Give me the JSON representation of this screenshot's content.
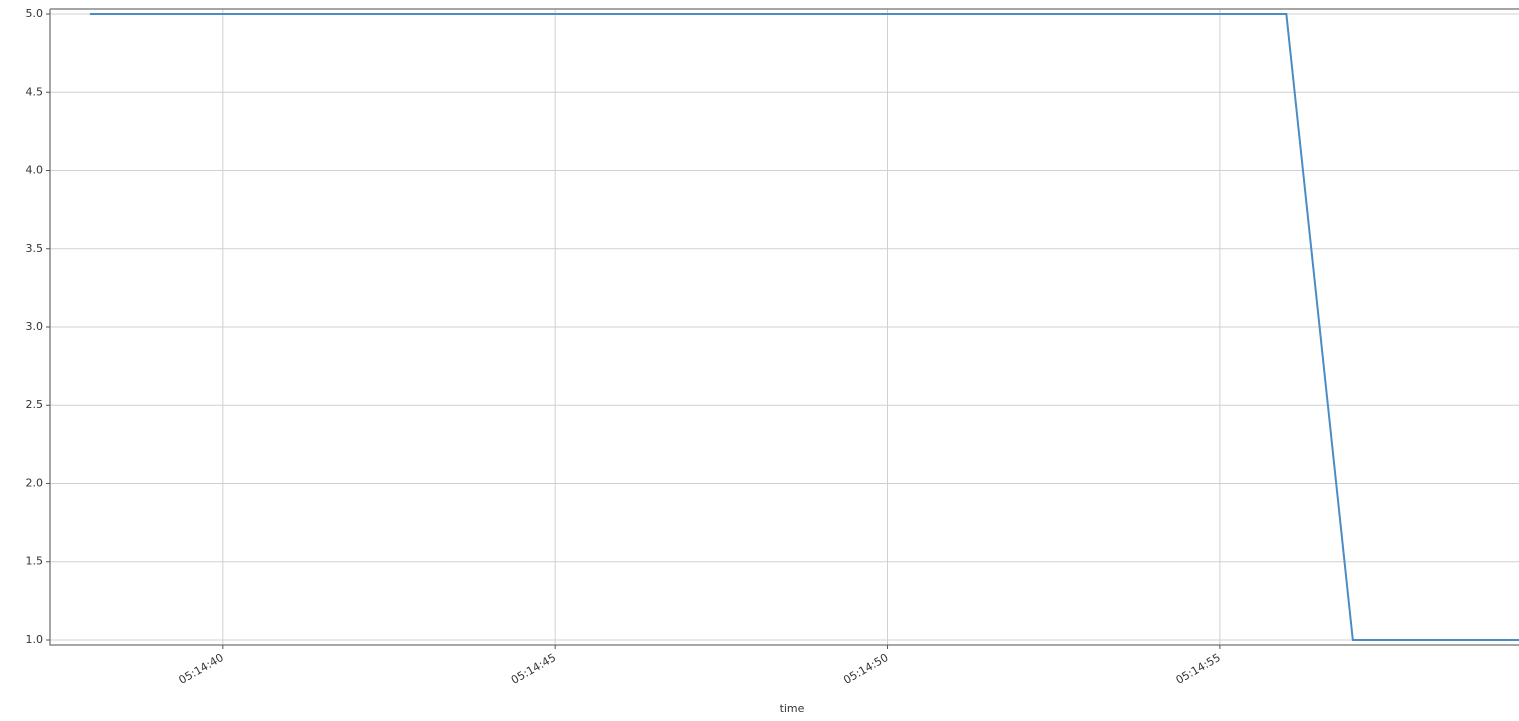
{
  "chart_data": {
    "type": "line",
    "xlabel": "time",
    "x": [
      "05:14:38",
      "05:14:39",
      "05:14:40",
      "05:14:41",
      "05:14:42",
      "05:14:43",
      "05:14:44",
      "05:14:45",
      "05:14:46",
      "05:14:47",
      "05:14:48",
      "05:14:49",
      "05:14:50",
      "05:14:51",
      "05:14:52",
      "05:14:53",
      "05:14:54",
      "05:14:55",
      "05:14:56",
      "05:14:57",
      "05:14:58",
      "05:14:59",
      "05:15:00"
    ],
    "series": [
      {
        "color": "#4a8cc6",
        "values": [
          5,
          5,
          5,
          5,
          5,
          5,
          5,
          5,
          5,
          5,
          5,
          5,
          5,
          5,
          5,
          5,
          5,
          5,
          5,
          1,
          1,
          1,
          1
        ]
      }
    ],
    "xlim": [
      "05:14:37.4",
      "05:14:59.5"
    ],
    "xticks": [
      "05:14:40",
      "05:14:45",
      "05:14:50",
      "05:14:55"
    ],
    "ylim": [
      0.968,
      5.032
    ],
    "yticks": [
      {
        "value": 1,
        "label": "1.0"
      },
      1.5,
      {
        "value": 2,
        "label": "2.0"
      },
      2.5,
      {
        "value": 3,
        "label": "3.0"
      },
      3.5,
      {
        "value": 4,
        "label": "4.0"
      },
      4.5,
      {
        "value": 5,
        "label": "5.0"
      }
    ],
    "grid": true
  }
}
